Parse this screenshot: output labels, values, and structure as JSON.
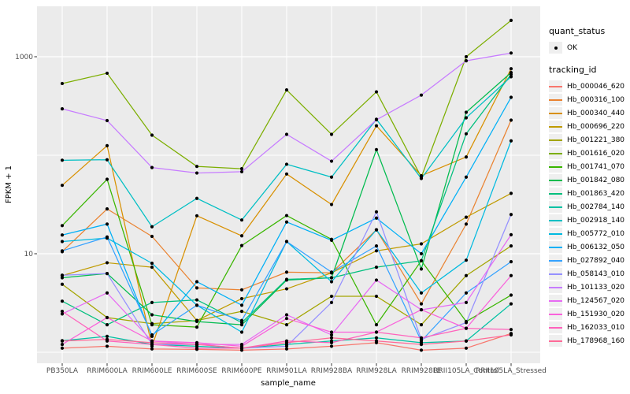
{
  "figure": {
    "background": "#FFFFFF",
    "panel_background": "#EBEBEB",
    "gridline_color": "#FFFFFF",
    "point_color": "#000000",
    "tick_label_color": "#4D4D4D",
    "axis_title_color": "#000000",
    "legend_key_background": "#EFEFEF"
  },
  "legend": {
    "quant_status_title": "quant_status",
    "quant_status_items": [
      "OK"
    ],
    "tracking_id_title": "tracking_id"
  },
  "chart_data": {
    "type": "line",
    "title": "",
    "xlabel": "sample_name",
    "ylabel": "FPKM + 1",
    "y_scale": "log10",
    "ylim": [
      0.8,
      3300
    ],
    "grid": true,
    "legend_position": "right",
    "y_ticks": [
      {
        "value": 10,
        "label": "10"
      },
      {
        "value": 1000,
        "label": "1000"
      }
    ],
    "y_gridlines": [
      1,
      10,
      100,
      1000
    ],
    "categories": [
      "PB350LA",
      "RRIM600LA",
      "RRIM600LE",
      "RRIM600SE",
      "RRIM600PE",
      "RRIM901LA",
      "RRIM928BA",
      "RRIM928LA",
      "RRIM928LE",
      "RRII105LA_Control",
      "RRII105LA_Stressed"
    ],
    "series": [
      {
        "tracking_id": "Hb_000046_620",
        "quant_status": "OK",
        "color": "#F8766D",
        "values": [
          1.1,
          1.15,
          1.08,
          1.07,
          1.05,
          1.08,
          1.15,
          1.25,
          1.05,
          1.1,
          1.55
        ]
      },
      {
        "tracking_id": "Hb_000316_100",
        "quant_status": "OK",
        "color": "#EA8331",
        "values": [
          10.5,
          28.5,
          15,
          4.5,
          4.3,
          6.5,
          6.4,
          17.5,
          3.1,
          20,
          227
        ]
      },
      {
        "tracking_id": "Hb_000340_440",
        "quant_status": "OK",
        "color": "#D89000",
        "values": [
          49.5,
          125,
          1.15,
          24.3,
          15.2,
          64.5,
          31.6,
          199,
          62,
          96,
          755
        ]
      },
      {
        "tracking_id": "Hb_000696_220",
        "quant_status": "OK",
        "color": "#C09B00",
        "values": [
          6.0,
          8.1,
          7.3,
          2.1,
          3.5,
          4.4,
          6.4,
          10.7,
          12.6,
          23.5,
          41
        ]
      },
      {
        "tracking_id": "Hb_001221_380",
        "quant_status": "OK",
        "color": "#A3A500",
        "values": [
          4.9,
          2.25,
          1.95,
          2.1,
          2.6,
          1.9,
          3.7,
          3.7,
          1.9,
          6.0,
          12
        ]
      },
      {
        "tracking_id": "Hb_001616_020",
        "quant_status": "OK",
        "color": "#7CAE00",
        "values": [
          535,
          680,
          160,
          77,
          73,
          460,
          163,
          440,
          60,
          1000,
          2340
        ]
      },
      {
        "tracking_id": "Hb_001741_070",
        "quant_status": "OK",
        "color": "#39B600",
        "values": [
          19.3,
          57,
          1.9,
          1.8,
          12.1,
          24.4,
          14,
          1.9,
          8.5,
          2.05,
          3.8
        ]
      },
      {
        "tracking_id": "Hb_001842_080",
        "quant_status": "OK",
        "color": "#00BB4E",
        "values": [
          5.7,
          6.3,
          2.4,
          2.05,
          1.9,
          5.4,
          5.7,
          114,
          7.0,
          273,
          690
        ]
      },
      {
        "tracking_id": "Hb_001863_420",
        "quant_status": "OK",
        "color": "#00BF7D",
        "values": [
          3.3,
          1.9,
          3.2,
          3.4,
          2.0,
          5.5,
          5.7,
          7.3,
          8.5,
          165,
          660
        ]
      },
      {
        "tracking_id": "Hb_002784_140",
        "quant_status": "OK",
        "color": "#00C1A3",
        "values": [
          1.31,
          1.45,
          1.2,
          1.15,
          1.1,
          1.2,
          1.3,
          1.4,
          1.25,
          1.3,
          3.1
        ]
      },
      {
        "tracking_id": "Hb_002918_140",
        "quant_status": "OK",
        "color": "#00BFC4",
        "values": [
          89,
          90,
          18.8,
          36.5,
          22,
          81,
          60,
          232,
          58,
          240,
          627
        ]
      },
      {
        "tracking_id": "Hb_005772_010",
        "quant_status": "OK",
        "color": "#00BAE0",
        "values": [
          13.3,
          14.4,
          8.0,
          3.0,
          1.6,
          13.3,
          5.2,
          17.5,
          4.0,
          8.6,
          140
        ]
      },
      {
        "tracking_id": "Hb_006132_050",
        "quant_status": "OK",
        "color": "#00B0F6",
        "values": [
          15.5,
          20,
          1.45,
          5.2,
          3.0,
          21,
          13.7,
          23,
          10,
          60,
          387
        ]
      },
      {
        "tracking_id": "Hb_027892_040",
        "quant_status": "OK",
        "color": "#35A2FF",
        "values": [
          10.7,
          14.8,
          1.5,
          3.0,
          2.1,
          13.3,
          6.5,
          12,
          1.3,
          4.0,
          8.3
        ]
      },
      {
        "tracking_id": "Hb_058143_010",
        "quant_status": "OK",
        "color": "#9590FF",
        "values": [
          6.05,
          6.3,
          1.2,
          1.2,
          1.1,
          1.15,
          3.2,
          26.6,
          1.35,
          2.0,
          25
        ]
      },
      {
        "tracking_id": "Hb_101133_020",
        "quant_status": "OK",
        "color": "#C77CFF",
        "values": [
          296,
          225,
          75,
          66,
          68,
          163,
          87,
          229,
          408,
          910,
          1090
        ]
      },
      {
        "tracking_id": "Hb_124567_020",
        "quant_status": "OK",
        "color": "#E76BF3",
        "values": [
          2.45,
          4.0,
          1.3,
          1.2,
          1.2,
          2.4,
          1.5,
          5.4,
          2.7,
          3.2,
          15.6
        ]
      },
      {
        "tracking_id": "Hb_151930_020",
        "quant_status": "OK",
        "color": "#FA62DB",
        "values": [
          1.2,
          2.25,
          1.3,
          1.25,
          1.15,
          2.2,
          1.6,
          1.6,
          2.7,
          1.75,
          6.0
        ]
      },
      {
        "tracking_id": "Hb_162033_010",
        "quant_status": "OK",
        "color": "#FF62BC",
        "values": [
          2.6,
          1.3,
          1.2,
          1.1,
          1.1,
          1.3,
          1.25,
          1.6,
          1.4,
          1.75,
          1.7
        ]
      },
      {
        "tracking_id": "Hb_178968_160",
        "quant_status": "OK",
        "color": "#FF6A98",
        "values": [
          1.3,
          1.35,
          1.25,
          1.2,
          1.1,
          1.25,
          1.4,
          1.3,
          1.2,
          1.3,
          1.5
        ]
      }
    ]
  }
}
